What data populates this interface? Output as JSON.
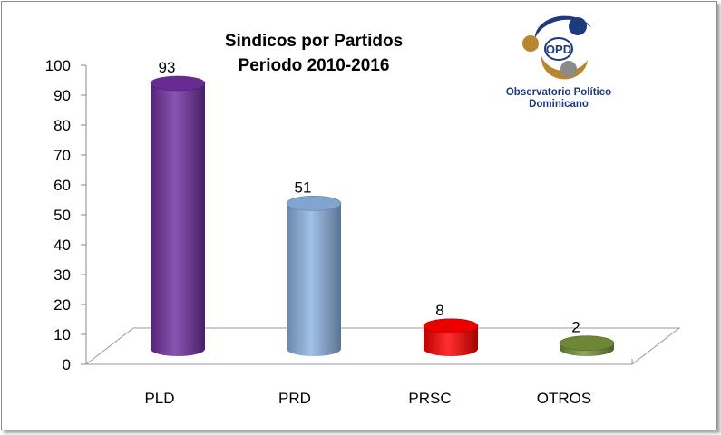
{
  "chart_data": {
    "type": "bar",
    "title": "Sindicos por Partidos",
    "subtitle": "Periodo  2010-2016",
    "categories": [
      "PLD",
      "PRD",
      "PRSC",
      "OTROS"
    ],
    "values": [
      93,
      51,
      8,
      2
    ],
    "data_labels": [
      "93",
      "51",
      "8",
      "2"
    ],
    "colors": [
      "#7030a0",
      "#8db3e2",
      "#ff0000",
      "#76933c"
    ],
    "ylim": [
      0,
      100
    ],
    "yticks": [
      "0",
      "10",
      "20",
      "30",
      "40",
      "50",
      "60",
      "70",
      "80",
      "90",
      "100"
    ],
    "xlabel": "",
    "ylabel": "",
    "grid": false,
    "style": "3d-cylinder"
  },
  "logo": {
    "mark": "OPD",
    "line1": "Observatorio Político",
    "line2": "Dominicano",
    "colors": {
      "gold": "#b8862e",
      "navy": "#1f3a7a",
      "gray": "#8a8a8a"
    }
  }
}
